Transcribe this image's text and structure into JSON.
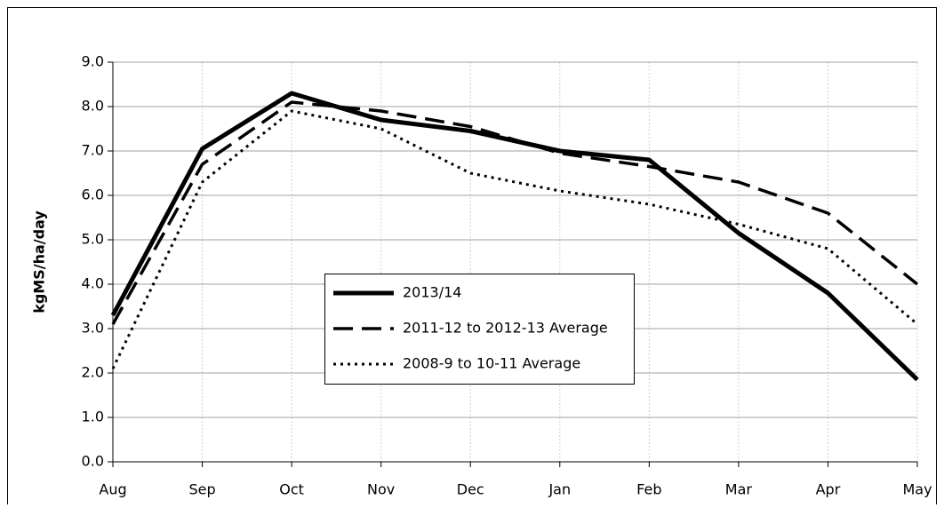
{
  "chart_data": {
    "type": "line",
    "y_label": "kgMS/ha/day",
    "categories": [
      "Aug",
      "Sep",
      "Oct",
      "Nov",
      "Dec",
      "Jan",
      "Feb",
      "Mar",
      "Apr",
      "May"
    ],
    "series": [
      {
        "name": "2013/14",
        "color": "#000000",
        "style": "solid",
        "values": [
          3.3,
          7.05,
          8.3,
          7.7,
          7.45,
          7.0,
          6.8,
          5.15,
          3.8,
          1.85
        ]
      },
      {
        "name": "2011-12 to 2012-13 Average",
        "color": "#000000",
        "style": "dashed",
        "values": [
          3.1,
          6.7,
          8.1,
          7.9,
          7.55,
          6.95,
          6.65,
          6.3,
          5.6,
          4.0
        ]
      },
      {
        "name": "2008-9 to 10-11 Average",
        "color": "#000000",
        "style": "dotted",
        "values": [
          2.1,
          6.3,
          7.9,
          7.5,
          6.5,
          6.1,
          5.8,
          5.35,
          4.8,
          3.1
        ]
      }
    ],
    "ylim": [
      0,
      9
    ],
    "yticks": [
      {
        "value": 0,
        "label": "0.0"
      },
      {
        "value": 1,
        "label": "1.0"
      },
      {
        "value": 2,
        "label": "2.0"
      },
      {
        "value": 3,
        "label": "3.0"
      },
      {
        "value": 4,
        "label": "4.0"
      },
      {
        "value": 5,
        "label": "5.0"
      },
      {
        "value": 6,
        "label": "6.0"
      },
      {
        "value": 7,
        "label": "7.0"
      },
      {
        "value": 8,
        "label": "8.0"
      },
      {
        "value": 9,
        "label": "9.0"
      }
    ],
    "grid": true
  }
}
